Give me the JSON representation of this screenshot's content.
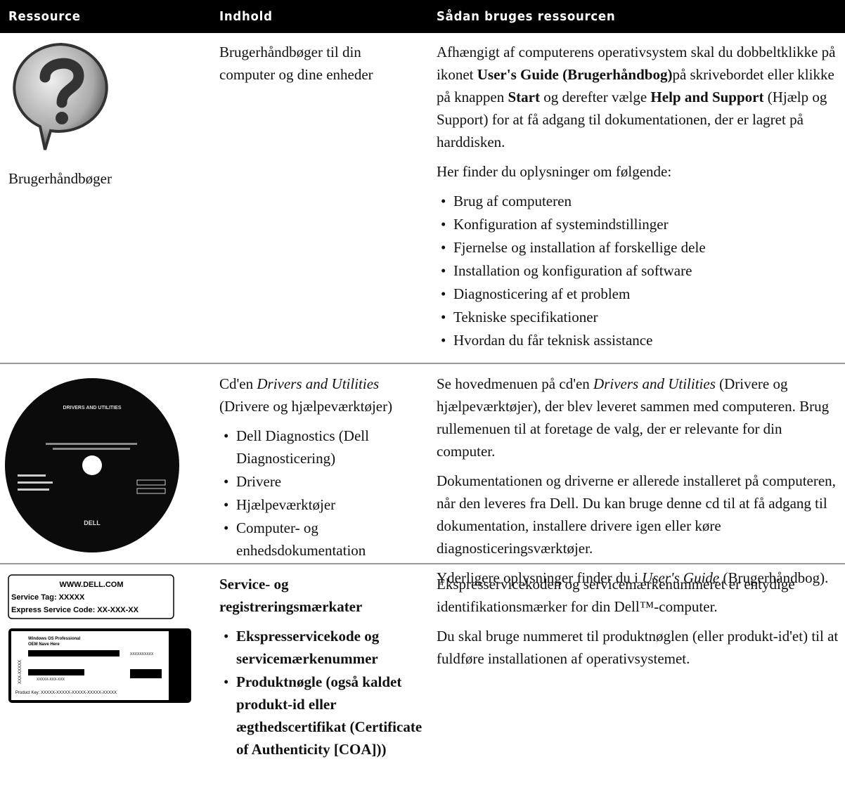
{
  "header": {
    "columns": [
      "Ressource",
      "Indhold",
      "Sådan bruges ressourcen"
    ]
  },
  "rows": [
    {
      "caption": "Brugerhåndbøger",
      "contents": [
        {
          "kind": "p",
          "runs": [
            {
              "text": "Brugerhåndbøger til din computer og dine enheder"
            }
          ]
        }
      ],
      "usage": [
        {
          "kind": "p",
          "runs": [
            {
              "text": "Afhængigt af computerens operativsystem skal du dobbeltklikke på ikonet "
            },
            {
              "text": "User's Guide (Brugerhåndbog)",
              "style": "bold"
            },
            {
              "text": "på skrivebordet eller klikke på knappen "
            },
            {
              "text": "Start",
              "style": "bold"
            },
            {
              "text": " og derefter vælge "
            },
            {
              "text": "Help and Support",
              "style": "bold"
            },
            {
              "text": " (Hjælp og Support) for at få adgang til dokumentationen, der er lagret på harddisken."
            }
          ]
        },
        {
          "kind": "p",
          "runs": [
            {
              "text": "Her finder du oplysninger om følgende:"
            }
          ]
        },
        {
          "kind": "li",
          "runs": [
            {
              "text": "Brug af computeren"
            }
          ]
        },
        {
          "kind": "li",
          "runs": [
            {
              "text": "Konfiguration af systemindstillinger"
            }
          ]
        },
        {
          "kind": "li",
          "runs": [
            {
              "text": "Fjernelse og installation af forskellige dele"
            }
          ]
        },
        {
          "kind": "li",
          "runs": [
            {
              "text": "Installation og konfiguration af software"
            }
          ]
        },
        {
          "kind": "li",
          "runs": [
            {
              "text": "Diagnosticering af et problem"
            }
          ]
        },
        {
          "kind": "li",
          "runs": [
            {
              "text": "Tekniske specifikationer"
            }
          ]
        },
        {
          "kind": "li",
          "runs": [
            {
              "text": "Hvordan du får teknisk assistance"
            }
          ]
        }
      ]
    },
    {
      "image_texts": [
        "DRIVERS AND UTILITIES",
        "DELL"
      ],
      "contents": [
        {
          "kind": "p",
          "runs": [
            {
              "text": "Cd'en "
            },
            {
              "text": "Drivers and Utilities",
              "style": "italic"
            },
            {
              "text": " (Drivere og hjælpeværktøjer)"
            }
          ]
        },
        {
          "kind": "li",
          "runs": [
            {
              "text": "Dell Diagnostics (Dell Diagnosticering)"
            }
          ]
        },
        {
          "kind": "li",
          "runs": [
            {
              "text": "Drivere"
            }
          ]
        },
        {
          "kind": "li",
          "runs": [
            {
              "text": "Hjælpeværktøjer"
            }
          ]
        },
        {
          "kind": "li",
          "runs": [
            {
              "text": "Computer- og enhedsdokumentation"
            }
          ]
        }
      ],
      "usage": [
        {
          "kind": "p",
          "runs": [
            {
              "text": "Se hovedmenuen på cd'en "
            },
            {
              "text": "Drivers and Utilities",
              "style": "italic"
            },
            {
              "text": " (Drivere og hjælpeværktøjer), der blev leveret sammen med computeren. Brug rullemenuen til at foretage de valg, der er relevante for din computer."
            }
          ]
        },
        {
          "kind": "p",
          "runs": [
            {
              "text": "Dokumentationen og driverne er allerede installeret på computeren, når den leveres fra Dell. Du kan bruge denne cd til at få adgang til dokumentation, installere drivere igen eller køre diagnosticeringsværktøjer."
            }
          ]
        },
        {
          "kind": "p",
          "runs": [
            {
              "text": "Yderligere oplysninger finder du i "
            },
            {
              "text": "User's Guide",
              "style": "italic"
            },
            {
              "text": " (Brugerhåndbog)."
            }
          ]
        }
      ]
    },
    {
      "image_texts": [
        "WWW.DELL.COM",
        "Service Tag: XXXXX",
        "Express Service Code: XX-XXX-XX",
        "Windows OS Professional",
        "OEM Nave Here",
        "XXXXXXXXXX",
        "XXX-XXXXX",
        "XXXXX-XXX-XXX",
        "Product Key:   XXXXX-XXXXX-XXXXX-XXXXX-XXXXX"
      ],
      "contents": [
        {
          "kind": "p",
          "runs": [
            {
              "text": "Service- og registreringsmærkater",
              "style": "bold"
            }
          ]
        },
        {
          "kind": "li",
          "runs": [
            {
              "text": "Ekspresservicekode og servicemærkenummer",
              "style": "bold"
            }
          ]
        },
        {
          "kind": "li",
          "runs": [
            {
              "text": "Produktnøgle (også kaldet produkt-id eller ægthedscertifikat (Certificate of Authenticity [COA]))",
              "style": "bold"
            }
          ]
        }
      ],
      "usage": [
        {
          "kind": "p",
          "runs": [
            {
              "text": "Ekspresservicekoden og servicemærkenummeret er entydige identifikationsmærker for din Dell™-computer."
            }
          ]
        },
        {
          "kind": "p",
          "runs": [
            {
              "text": "Du skal bruge nummeret til produktnøglen (eller produkt-id'et) til at fuldføre installationen af operativsystemet."
            }
          ]
        }
      ]
    }
  ]
}
